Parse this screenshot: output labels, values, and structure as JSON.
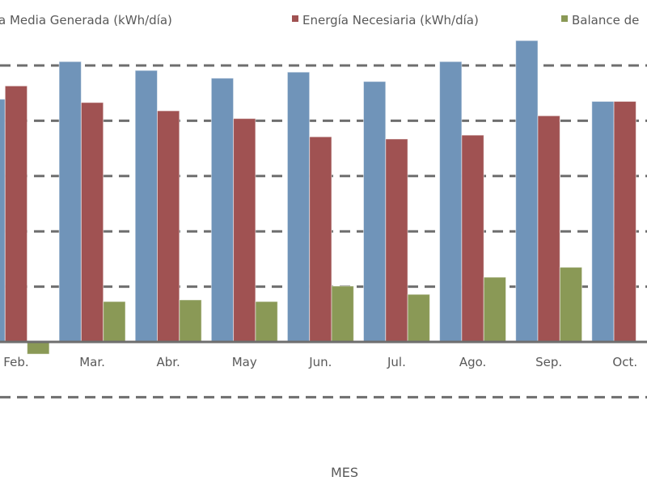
{
  "chart_data": {
    "type": "bar",
    "title": "",
    "xlabel": "MES",
    "ylabel": "",
    "value_units_note": "values read in gridline units (tick labels not visible)",
    "ylim": [
      -1,
      5.5
    ],
    "grid": true,
    "legend_position": "top",
    "categories": [
      "Feb.",
      "Mar.",
      "Abr.",
      "May",
      "Jun.",
      "Jul.",
      "Ago.",
      "Sep.",
      "Oct."
    ],
    "series": [
      {
        "name": "Energía Media Generada (kWh/día)",
        "legend_visible_text": "a Media Generada (kWh/día)",
        "color": "#7094b9",
        "values": [
          4.39,
          5.07,
          4.91,
          4.77,
          4.88,
          4.71,
          5.07,
          5.45,
          4.35
        ]
      },
      {
        "name": "Energía Necesiaria (kWh/día)",
        "legend_visible_text": "Energía Necesiaria (kWh/día)",
        "color": "#a05252",
        "values": [
          4.63,
          4.33,
          4.18,
          4.04,
          3.71,
          3.67,
          3.74,
          4.09,
          4.35
        ]
      },
      {
        "name": "Balance de",
        "legend_visible_text": "Balance de",
        "color": "#8a9956",
        "values": [
          -0.22,
          0.73,
          0.76,
          0.73,
          1.01,
          0.86,
          1.17,
          1.35,
          0
        ]
      }
    ]
  }
}
